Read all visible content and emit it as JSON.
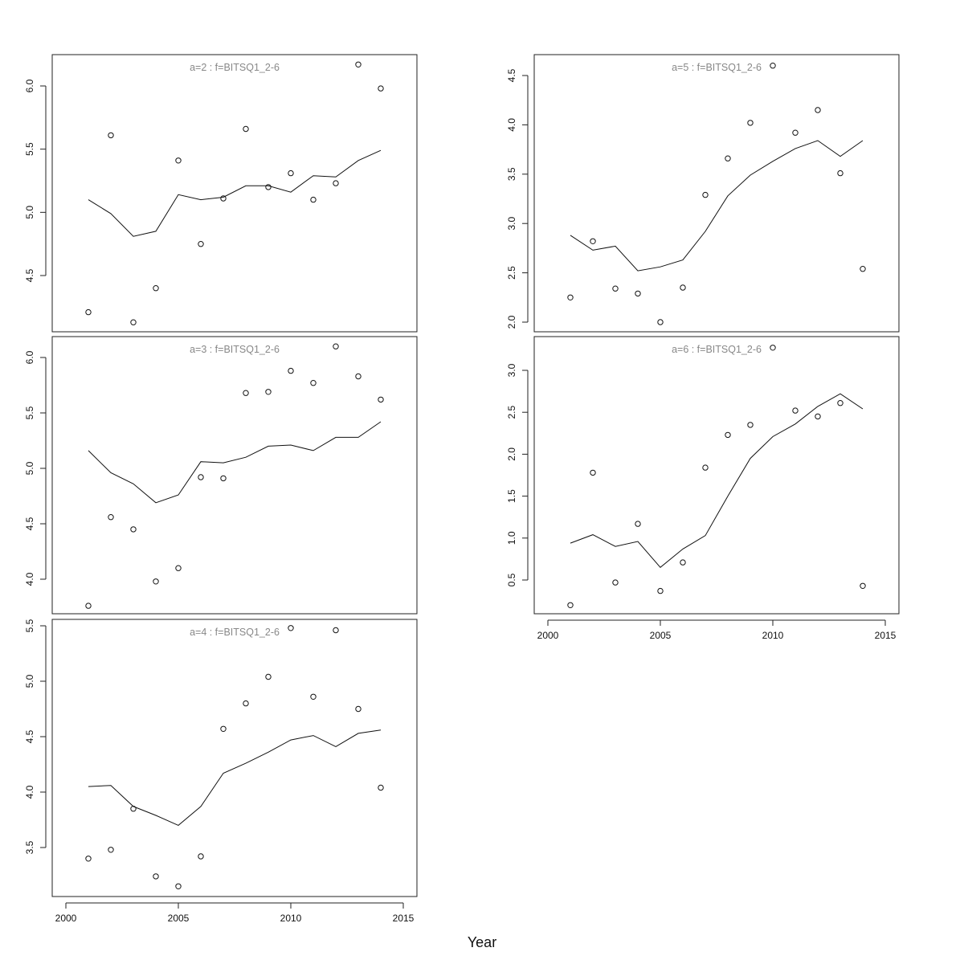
{
  "figure": {
    "xlabel": "Year"
  },
  "chart_data": [
    {
      "type": "scatter",
      "title": "a=2  :  f=BITSQ1_2-6",
      "x": [
        2001,
        2002,
        2003,
        2004,
        2005,
        2006,
        2007,
        2008,
        2009,
        2010,
        2011,
        2012,
        2013,
        2014
      ],
      "series": [
        {
          "kind": "points",
          "values": [
            4.21,
            5.61,
            4.13,
            4.4,
            5.41,
            4.75,
            5.11,
            5.66,
            5.2,
            5.31,
            5.1,
            5.23,
            6.17,
            5.98
          ]
        },
        {
          "kind": "line",
          "values": [
            5.1,
            4.99,
            4.81,
            4.85,
            5.14,
            5.1,
            5.12,
            5.21,
            5.21,
            5.16,
            5.29,
            5.28,
            5.41,
            5.49
          ]
        }
      ],
      "xlim": [
        2001,
        2015
      ],
      "ylim": [
        4.1,
        6.2
      ],
      "yticks": [
        "4.5",
        "5.0",
        "5.5",
        "6.0"
      ],
      "xticks": [],
      "grid": false
    },
    {
      "type": "scatter",
      "title": "a=3  :  f=BITSQ1_2-6",
      "x": [
        2001,
        2002,
        2003,
        2004,
        2005,
        2006,
        2007,
        2008,
        2009,
        2010,
        2011,
        2012,
        2013,
        2014
      ],
      "series": [
        {
          "kind": "points",
          "values": [
            3.76,
            4.56,
            4.45,
            3.98,
            4.1,
            4.92,
            4.91,
            5.68,
            5.69,
            5.88,
            5.77,
            6.1,
            5.83,
            5.62
          ]
        },
        {
          "kind": "line",
          "values": [
            5.16,
            4.96,
            4.86,
            4.69,
            4.76,
            5.06,
            5.05,
            5.1,
            5.2,
            5.21,
            5.16,
            5.28,
            5.28,
            5.42
          ]
        }
      ],
      "xlim": [
        2001,
        2015
      ],
      "ylim": [
        3.75,
        6.1
      ],
      "yticks": [
        "4.0",
        "4.5",
        "5.0",
        "5.5",
        "6.0"
      ],
      "xticks": [],
      "grid": false
    },
    {
      "type": "scatter",
      "title": "a=4  :  f=BITSQ1_2-6",
      "x": [
        2001,
        2002,
        2003,
        2004,
        2005,
        2006,
        2007,
        2008,
        2009,
        2010,
        2011,
        2012,
        2013,
        2014
      ],
      "series": [
        {
          "kind": "points",
          "values": [
            3.4,
            3.48,
            3.85,
            3.24,
            3.15,
            3.42,
            4.57,
            4.8,
            5.04,
            5.48,
            4.86,
            5.46,
            4.75,
            4.04
          ]
        },
        {
          "kind": "line",
          "values": [
            4.05,
            4.06,
            3.87,
            3.79,
            3.7,
            3.87,
            4.17,
            4.26,
            4.36,
            4.47,
            4.51,
            4.41,
            4.53,
            4.56
          ]
        }
      ],
      "xlim": [
        2001,
        2015
      ],
      "ylim": [
        3.15,
        5.5
      ],
      "yticks": [
        "3.5",
        "4.0",
        "4.5",
        "5.0",
        "5.5"
      ],
      "xticks": [
        "2000",
        "2005",
        "2010",
        "2015"
      ],
      "grid": false
    },
    {
      "type": "scatter",
      "title": "a=5  :  f=BITSQ1_2-6",
      "x": [
        2001,
        2002,
        2003,
        2004,
        2005,
        2006,
        2007,
        2008,
        2009,
        2010,
        2011,
        2012,
        2013,
        2014
      ],
      "series": [
        {
          "kind": "points",
          "values": [
            2.25,
            2.82,
            2.34,
            2.29,
            2.0,
            2.35,
            3.29,
            3.66,
            4.02,
            4.6,
            3.92,
            4.15,
            3.51,
            2.54
          ]
        },
        {
          "kind": "line",
          "values": [
            2.88,
            2.73,
            2.77,
            2.52,
            2.56,
            2.63,
            2.92,
            3.28,
            3.49,
            3.63,
            3.76,
            3.84,
            3.68,
            3.84
          ]
        }
      ],
      "xlim": [
        2001,
        2015
      ],
      "ylim": [
        2.0,
        4.6
      ],
      "yticks": [
        "2.0",
        "2.5",
        "3.0",
        "3.5",
        "4.0",
        "4.5"
      ],
      "xticks": [],
      "grid": false
    },
    {
      "type": "scatter",
      "title": "a=6  :  f=BITSQ1_2-6",
      "x": [
        2001,
        2002,
        2003,
        2004,
        2005,
        2006,
        2007,
        2008,
        2009,
        2010,
        2011,
        2012,
        2013,
        2014
      ],
      "series": [
        {
          "kind": "points",
          "values": [
            0.2,
            1.78,
            0.47,
            1.17,
            0.37,
            0.71,
            1.84,
            2.23,
            2.35,
            3.27,
            2.52,
            2.45,
            2.61,
            0.43
          ]
        },
        {
          "kind": "line",
          "values": [
            0.94,
            1.04,
            0.9,
            0.96,
            0.65,
            0.87,
            1.03,
            1.5,
            1.95,
            2.21,
            2.36,
            2.57,
            2.72,
            2.54
          ]
        }
      ],
      "xlim": [
        2001,
        2015
      ],
      "ylim": [
        0.2,
        3.27
      ],
      "yticks": [
        "0.5",
        "1.0",
        "1.5",
        "2.0",
        "2.5",
        "3.0"
      ],
      "xticks": [
        "2000",
        "2005",
        "2010",
        "2015"
      ],
      "grid": false
    }
  ]
}
